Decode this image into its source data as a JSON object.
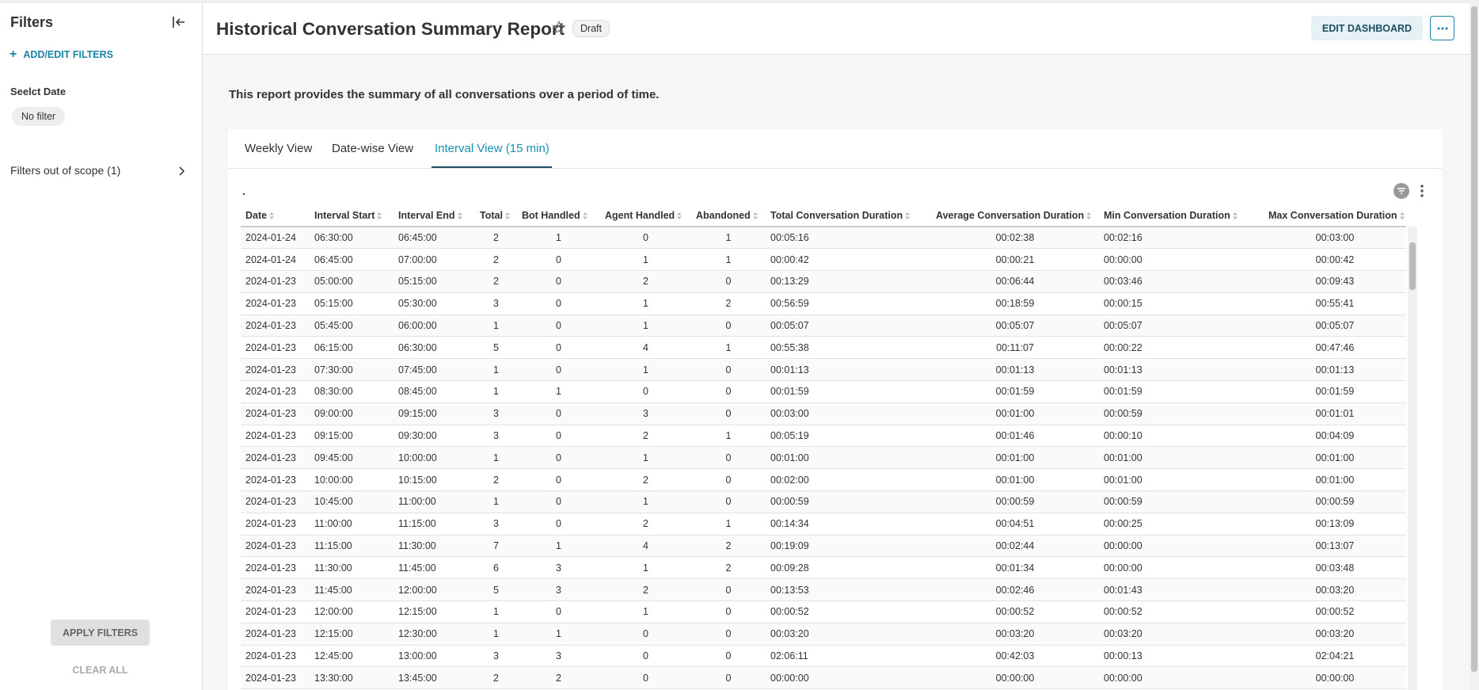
{
  "sidebar": {
    "title": "Filters",
    "add_filters": "ADD/EDIT FILTERS",
    "filter_label": "Seelct Date",
    "filter_value": "No filter",
    "out_of_scope": "Filters out of scope (1)",
    "apply": "APPLY FILTERS",
    "clear": "CLEAR ALL"
  },
  "header": {
    "title": "Historical Conversation Summary Report",
    "badge": "Draft",
    "edit_button": "EDIT DASHBOARD"
  },
  "description": "This report provides the summary of all conversations over a period of time.",
  "tabs": [
    "Weekly View",
    "Date-wise View",
    "Interval View (15 min)"
  ],
  "chart_header": ".",
  "table": {
    "columns": [
      "Date",
      "Interval Start",
      "Interval End",
      "Total",
      "Bot Handled",
      "Agent Handled",
      "Abandoned",
      "Total Conversation Duration",
      "Average Conversation Duration",
      "Min Conversation Duration",
      "Max Conversation Duration"
    ],
    "rows": [
      [
        "2024-01-24",
        "06:30:00",
        "06:45:00",
        2,
        1,
        0,
        1,
        "00:05:16",
        "00:02:38",
        "00:02:16",
        "00:03:00"
      ],
      [
        "2024-01-24",
        "06:45:00",
        "07:00:00",
        2,
        0,
        1,
        1,
        "00:00:42",
        "00:00:21",
        "00:00:00",
        "00:00:42"
      ],
      [
        "2024-01-23",
        "05:00:00",
        "05:15:00",
        2,
        0,
        2,
        0,
        "00:13:29",
        "00:06:44",
        "00:03:46",
        "00:09:43"
      ],
      [
        "2024-01-23",
        "05:15:00",
        "05:30:00",
        3,
        0,
        1,
        2,
        "00:56:59",
        "00:18:59",
        "00:00:15",
        "00:55:41"
      ],
      [
        "2024-01-23",
        "05:45:00",
        "06:00:00",
        1,
        0,
        1,
        0,
        "00:05:07",
        "00:05:07",
        "00:05:07",
        "00:05:07"
      ],
      [
        "2024-01-23",
        "06:15:00",
        "06:30:00",
        5,
        0,
        4,
        1,
        "00:55:38",
        "00:11:07",
        "00:00:22",
        "00:47:46"
      ],
      [
        "2024-01-23",
        "07:30:00",
        "07:45:00",
        1,
        0,
        1,
        0,
        "00:01:13",
        "00:01:13",
        "00:01:13",
        "00:01:13"
      ],
      [
        "2024-01-23",
        "08:30:00",
        "08:45:00",
        1,
        1,
        0,
        0,
        "00:01:59",
        "00:01:59",
        "00:01:59",
        "00:01:59"
      ],
      [
        "2024-01-23",
        "09:00:00",
        "09:15:00",
        3,
        0,
        3,
        0,
        "00:03:00",
        "00:01:00",
        "00:00:59",
        "00:01:01"
      ],
      [
        "2024-01-23",
        "09:15:00",
        "09:30:00",
        3,
        0,
        2,
        1,
        "00:05:19",
        "00:01:46",
        "00:00:10",
        "00:04:09"
      ],
      [
        "2024-01-23",
        "09:45:00",
        "10:00:00",
        1,
        0,
        1,
        0,
        "00:01:00",
        "00:01:00",
        "00:01:00",
        "00:01:00"
      ],
      [
        "2024-01-23",
        "10:00:00",
        "10:15:00",
        2,
        0,
        2,
        0,
        "00:02:00",
        "00:01:00",
        "00:01:00",
        "00:01:00"
      ],
      [
        "2024-01-23",
        "10:45:00",
        "11:00:00",
        1,
        0,
        1,
        0,
        "00:00:59",
        "00:00:59",
        "00:00:59",
        "00:00:59"
      ],
      [
        "2024-01-23",
        "11:00:00",
        "11:15:00",
        3,
        0,
        2,
        1,
        "00:14:34",
        "00:04:51",
        "00:00:25",
        "00:13:09"
      ],
      [
        "2024-01-23",
        "11:15:00",
        "11:30:00",
        7,
        1,
        4,
        2,
        "00:19:09",
        "00:02:44",
        "00:00:00",
        "00:13:07"
      ],
      [
        "2024-01-23",
        "11:30:00",
        "11:45:00",
        6,
        3,
        1,
        2,
        "00:09:28",
        "00:01:34",
        "00:00:00",
        "00:03:48"
      ],
      [
        "2024-01-23",
        "11:45:00",
        "12:00:00",
        5,
        3,
        2,
        0,
        "00:13:53",
        "00:02:46",
        "00:01:43",
        "00:03:20"
      ],
      [
        "2024-01-23",
        "12:00:00",
        "12:15:00",
        1,
        0,
        1,
        0,
        "00:00:52",
        "00:00:52",
        "00:00:52",
        "00:00:52"
      ],
      [
        "2024-01-23",
        "12:15:00",
        "12:30:00",
        1,
        1,
        0,
        0,
        "00:03:20",
        "00:03:20",
        "00:03:20",
        "00:03:20"
      ],
      [
        "2024-01-23",
        "12:45:00",
        "13:00:00",
        3,
        3,
        0,
        0,
        "02:06:11",
        "00:42:03",
        "00:00:13",
        "02:04:21"
      ],
      [
        "2024-01-23",
        "13:30:00",
        "13:45:00",
        2,
        2,
        0,
        0,
        "00:00:00",
        "00:00:00",
        "00:00:00",
        "00:00:00"
      ]
    ]
  }
}
